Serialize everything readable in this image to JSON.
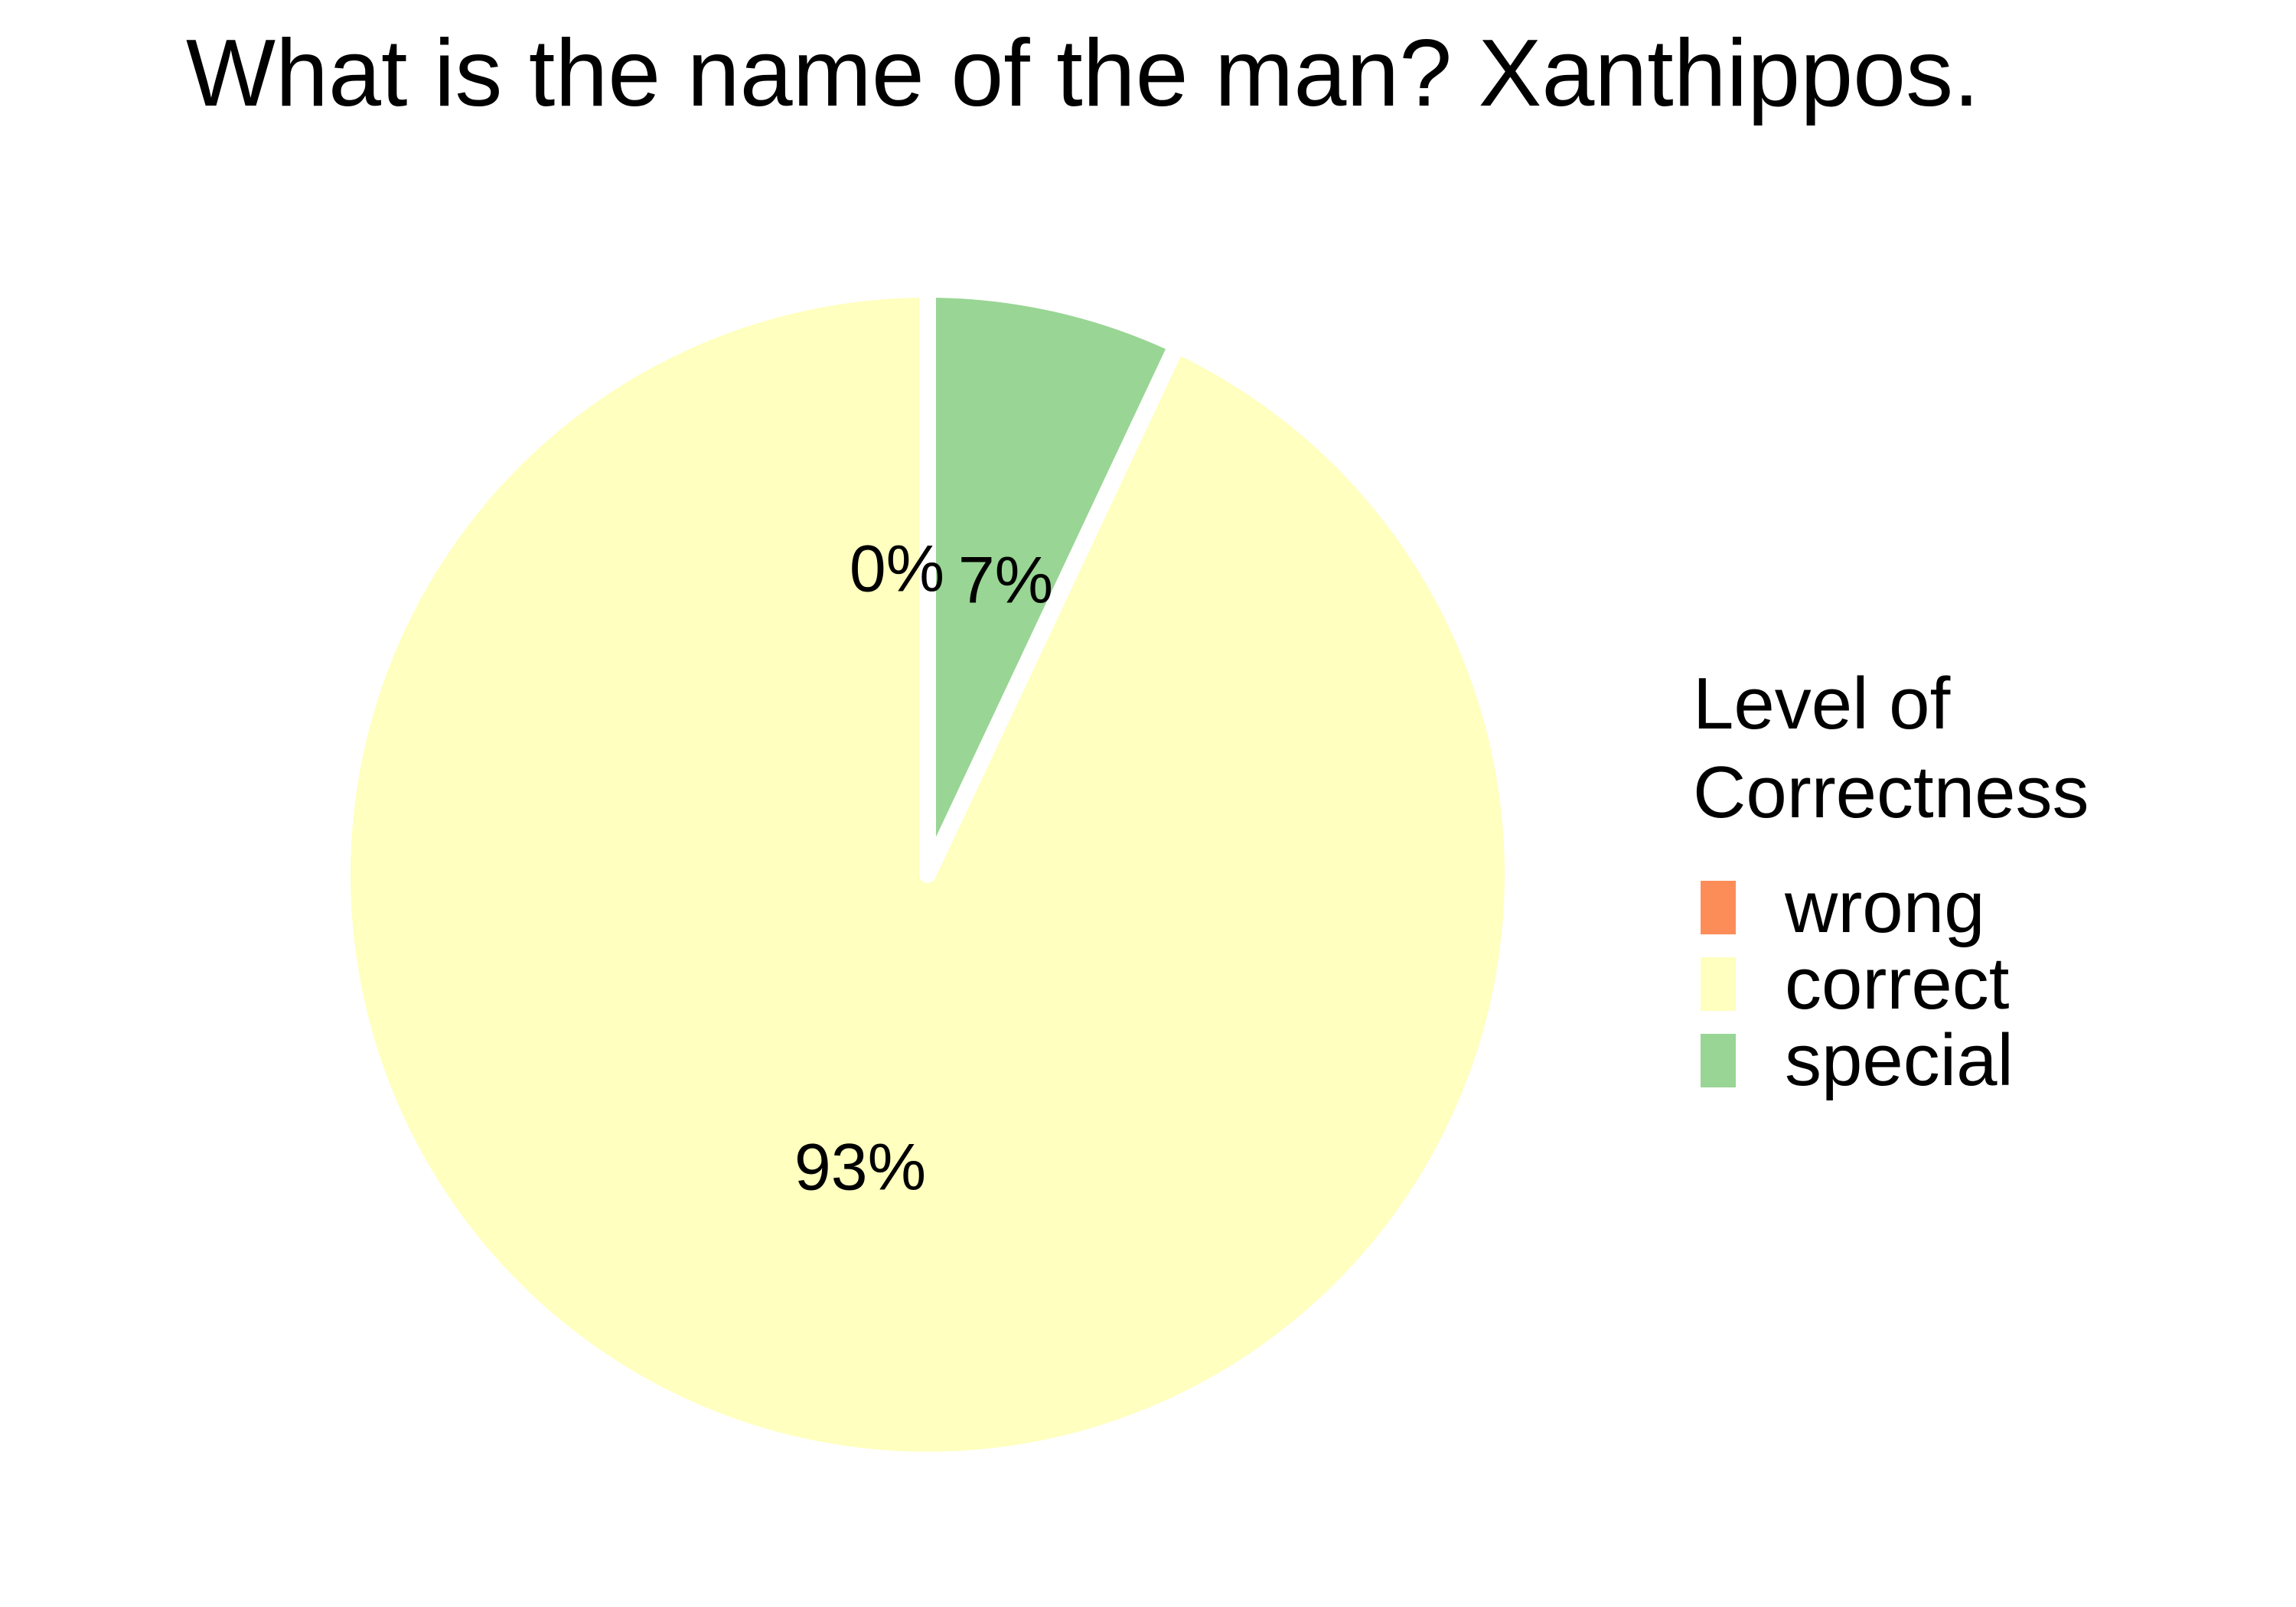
{
  "chart_data": {
    "type": "pie",
    "title": "What is the name of the man? Xanthippos.",
    "legend_title": "Level of\nCorrectness",
    "legend_placement": "right",
    "slices": [
      {
        "name": "wrong",
        "value": 0,
        "label": "0%"
      },
      {
        "name": "special",
        "value": 7,
        "label": "7%"
      },
      {
        "name": "correct",
        "value": 93,
        "label": "93%"
      }
    ],
    "legend": [
      "wrong",
      "correct",
      "special"
    ],
    "colors": {
      "wrong": "#FC8D59",
      "correct": "#FFFFBF",
      "special": "#99D594",
      "separator": "#FFFFFF"
    }
  }
}
